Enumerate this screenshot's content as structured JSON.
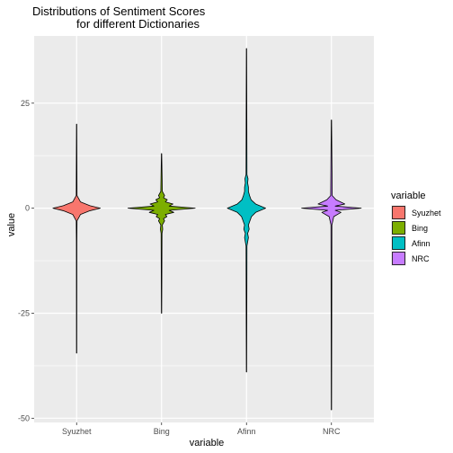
{
  "chart_data": {
    "type": "violin",
    "title_line1": "Distributions of Sentiment Scores",
    "title_line2": "for different Dictionaries",
    "xlabel": "variable",
    "ylabel": "value",
    "ylim": [
      -51,
      41
    ],
    "y_ticks": [
      25,
      0,
      -25,
      -50
    ],
    "y_tick_labels": [
      "25",
      "0",
      "-25",
      "-50"
    ],
    "grid": true,
    "legend": {
      "title": "variable",
      "position": "right"
    },
    "series": [
      {
        "name": "Syuzhet",
        "color": "#F8766D",
        "min": -34.5,
        "max": 20,
        "profile": [
          [
            -34.5,
            0.004
          ],
          [
            -8,
            0.006
          ],
          [
            -3,
            0.01
          ],
          [
            -1.5,
            0.1
          ],
          [
            -0.6,
            0.35
          ],
          [
            0,
            0.62
          ],
          [
            0.6,
            0.35
          ],
          [
            1.5,
            0.1
          ],
          [
            3,
            0.01
          ],
          [
            20,
            0.004
          ]
        ]
      },
      {
        "name": "Bing",
        "color": "#7CAE00",
        "min": -25,
        "max": 13,
        "profile": [
          [
            -25,
            0.004
          ],
          [
            -6,
            0.012
          ],
          [
            -5,
            0.03
          ],
          [
            -4,
            0.02
          ],
          [
            -3,
            0.08
          ],
          [
            -2.5,
            0.05
          ],
          [
            -2,
            0.14
          ],
          [
            -1.5,
            0.1
          ],
          [
            -1,
            0.32
          ],
          [
            -0.5,
            0.2
          ],
          [
            0,
            0.88
          ],
          [
            0.5,
            0.2
          ],
          [
            1,
            0.3
          ],
          [
            1.5,
            0.1
          ],
          [
            2,
            0.15
          ],
          [
            2.5,
            0.05
          ],
          [
            3,
            0.08
          ],
          [
            4,
            0.02
          ],
          [
            13,
            0.004
          ]
        ]
      },
      {
        "name": "Afinn",
        "color": "#00BFC4",
        "min": -39,
        "max": 38,
        "profile": [
          [
            -39,
            0.004
          ],
          [
            -9,
            0.012
          ],
          [
            -7,
            0.05
          ],
          [
            -6,
            0.03
          ],
          [
            -5,
            0.07
          ],
          [
            -4,
            0.05
          ],
          [
            -3,
            0.09
          ],
          [
            -2,
            0.13
          ],
          [
            -1,
            0.24
          ],
          [
            0,
            0.5
          ],
          [
            1,
            0.24
          ],
          [
            2,
            0.12
          ],
          [
            3,
            0.08
          ],
          [
            4,
            0.05
          ],
          [
            5,
            0.05
          ],
          [
            6,
            0.03
          ],
          [
            7,
            0.04
          ],
          [
            8,
            0.012
          ],
          [
            38,
            0.004
          ]
        ]
      },
      {
        "name": "NRC",
        "color": "#C77CFF",
        "min": -48,
        "max": 21,
        "profile": [
          [
            -48,
            0.004
          ],
          [
            -4,
            0.012
          ],
          [
            -2,
            0.06
          ],
          [
            -1,
            0.25
          ],
          [
            -0.5,
            0.1
          ],
          [
            0,
            0.78
          ],
          [
            0.5,
            0.1
          ],
          [
            1,
            0.35
          ],
          [
            2,
            0.12
          ],
          [
            3,
            0.02
          ],
          [
            21,
            0.004
          ]
        ]
      }
    ]
  }
}
